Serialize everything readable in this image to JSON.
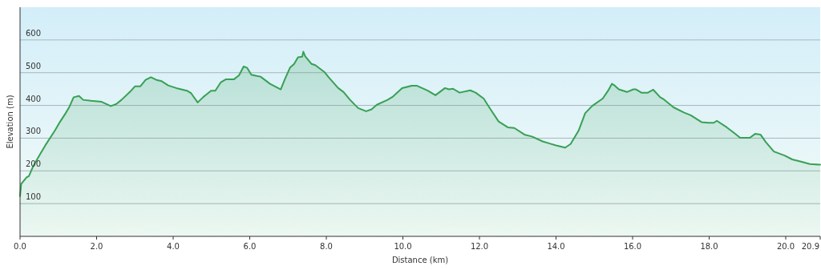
{
  "chart_data": {
    "type": "area",
    "xlabel": "Distance (km)",
    "ylabel": "Elevation (m)",
    "x": [
      0,
      0.03,
      0.17,
      0.23,
      0.35,
      0.52,
      0.66,
      0.91,
      1.05,
      1.19,
      1.29,
      1.4,
      1.54,
      1.65,
      1.85,
      2.13,
      2.37,
      2.51,
      2.65,
      2.9,
      3.0,
      3.14,
      3.28,
      3.42,
      3.56,
      3.7,
      3.87,
      4.08,
      4.36,
      4.47,
      4.64,
      4.78,
      4.99,
      5.1,
      5.24,
      5.38,
      5.48,
      5.59,
      5.72,
      5.84,
      5.93,
      6.04,
      6.18,
      6.28,
      6.53,
      6.81,
      6.91,
      7.05,
      7.16,
      7.26,
      7.37,
      7.4,
      7.45,
      7.61,
      7.71,
      7.96,
      8.06,
      8.31,
      8.45,
      8.62,
      8.83,
      9.04,
      9.18,
      9.32,
      9.6,
      9.74,
      9.98,
      10.23,
      10.37,
      10.65,
      10.85,
      11.1,
      11.2,
      11.31,
      11.48,
      11.76,
      11.9,
      12.11,
      12.29,
      12.5,
      12.74,
      12.91,
      13.19,
      13.37,
      13.65,
      13.85,
      14.0,
      14.24,
      14.38,
      14.59,
      14.76,
      14.94,
      15.22,
      15.36,
      15.46,
      15.53,
      15.64,
      15.85,
      16.02,
      16.09,
      16.23,
      16.4,
      16.54,
      16.72,
      16.82,
      17.07,
      17.35,
      17.52,
      17.8,
      17.98,
      18.12,
      18.2,
      18.46,
      18.64,
      18.81,
      19.06,
      19.2,
      19.34,
      19.48,
      19.69,
      19.97,
      20.17,
      20.38,
      20.63,
      20.87,
      20.9
    ],
    "series": [
      {
        "color": "#38a055",
        "values": [
          123,
          160,
          180,
          184,
          216,
          250,
          278,
          323,
          351,
          376,
          396,
          425,
          429,
          417,
          414,
          411,
          398,
          404,
          417,
          445,
          458,
          458,
          478,
          486,
          478,
          474,
          461,
          453,
          445,
          437,
          409,
          425,
          445,
          445,
          470,
          480,
          480,
          480,
          492,
          519,
          515,
          494,
          490,
          488,
          466,
          449,
          478,
          515,
          527,
          547,
          549,
          564,
          550,
          527,
          523,
          501,
          486,
          453,
          441,
          417,
          392,
          382,
          388,
          402,
          417,
          427,
          453,
          460,
          460,
          445,
          431,
          453,
          449,
          451,
          439,
          446,
          439,
          421,
          388,
          351,
          333,
          331,
          310,
          305,
          290,
          283,
          278,
          271,
          282,
          323,
          376,
          398,
          421,
          445,
          466,
          461,
          449,
          441,
          449,
          449,
          439,
          439,
          448,
          425,
          418,
          394,
          378,
          370,
          349,
          347,
          347,
          353,
          333,
          317,
          301,
          301,
          313,
          311,
          288,
          259,
          247,
          235,
          229,
          221,
          219,
          219
        ]
      }
    ],
    "xlim": [
      0,
      20.9
    ],
    "xticks": [
      {
        "value": 0,
        "label": "0.0"
      },
      {
        "value": 2,
        "label": "2.0"
      },
      {
        "value": 4,
        "label": "4.0"
      },
      {
        "value": 6,
        "label": "6.0"
      },
      {
        "value": 8,
        "label": "8.0"
      },
      {
        "value": 10,
        "label": "10.0"
      },
      {
        "value": 12,
        "label": "12.0"
      },
      {
        "value": 14,
        "label": "14.0"
      },
      {
        "value": 16,
        "label": "16.0"
      },
      {
        "value": 18,
        "label": "18.0"
      },
      {
        "value": 20,
        "label": "20.0"
      },
      20.9
    ],
    "ylim": [
      0,
      700
    ],
    "yticks": [
      100,
      200,
      300,
      400,
      500,
      600
    ],
    "grid": "y"
  }
}
